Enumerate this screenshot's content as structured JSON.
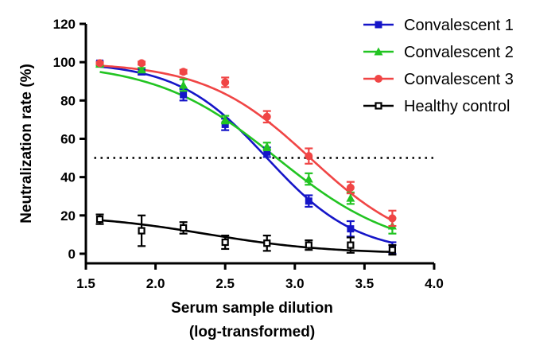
{
  "chart_data": {
    "type": "scatter",
    "title": "",
    "xlabel_lines": [
      "Serum sample dilution",
      "(log-transformed)"
    ],
    "ylabel": "Neutralization rate (%)",
    "xlim": [
      1.5,
      4.0
    ],
    "ylim": [
      -5,
      120
    ],
    "xticks": [
      1.5,
      2.0,
      2.5,
      3.0,
      3.5,
      4.0
    ],
    "xtick_labels": [
      "1.5",
      "2.0",
      "2.5",
      "3.0",
      "3.5",
      "4.0"
    ],
    "yticks": [
      0,
      20,
      40,
      60,
      80,
      100,
      120
    ],
    "ytick_labels": [
      "0",
      "20",
      "40",
      "60",
      "80",
      "100",
      "120"
    ],
    "reference_line": {
      "y": 50,
      "style": "dotted"
    },
    "legend_position": "top-right",
    "grid": false,
    "series": [
      {
        "name": "Convalescent 1",
        "color": "#1515c8",
        "marker": "square-filled",
        "x": [
          1.6,
          1.9,
          2.2,
          2.5,
          2.8,
          3.1,
          3.4,
          3.7
        ],
        "y": [
          99.5,
          95,
          83,
          67.5,
          53,
          27.5,
          13,
          3
        ],
        "error": [
          0.8,
          1.5,
          3,
          3,
          2.5,
          3,
          4,
          3
        ],
        "fit": {
          "top": 100,
          "bottom": 0,
          "logIC50": 2.8,
          "hill": 1.35
        }
      },
      {
        "name": "Convalescent 2",
        "color": "#22c422",
        "marker": "triangle-filled",
        "x": [
          1.6,
          1.9,
          2.2,
          2.5,
          2.8,
          3.1,
          3.4,
          3.7
        ],
        "y": [
          99,
          96,
          88,
          70,
          56,
          39,
          29,
          14.5
        ],
        "error": [
          0.8,
          1,
          3,
          2,
          2,
          3,
          3,
          4
        ],
        "fit": {
          "top": 100,
          "bottom": 0,
          "logIC50": 2.87,
          "hill": 1.0
        }
      },
      {
        "name": "Convalescent 3",
        "color": "#f04545",
        "marker": "circle-filled",
        "x": [
          1.6,
          1.9,
          2.2,
          2.5,
          2.8,
          3.1,
          3.4,
          3.7
        ],
        "y": [
          99.5,
          99.5,
          95,
          89.5,
          71.5,
          51,
          34.5,
          18.5
        ],
        "error": [
          0.5,
          0.8,
          1,
          2.5,
          3,
          4,
          3,
          4
        ],
        "fit": {
          "top": 100,
          "bottom": 0,
          "logIC50": 3.11,
          "hill": 1.15
        }
      },
      {
        "name": "Healthy control",
        "color": "#000000",
        "marker": "square-open",
        "x": [
          1.6,
          1.9,
          2.2,
          2.5,
          2.8,
          3.1,
          3.4,
          3.7
        ],
        "y": [
          18,
          12,
          13.5,
          6,
          5.5,
          4.5,
          4.5,
          2
        ],
        "error": [
          2.5,
          8,
          3,
          3.5,
          4,
          2.5,
          4,
          2.5
        ],
        "fit": {
          "top": 20.5,
          "bottom": 0,
          "logIC50": 2.37,
          "hill": 1.0
        }
      }
    ]
  }
}
